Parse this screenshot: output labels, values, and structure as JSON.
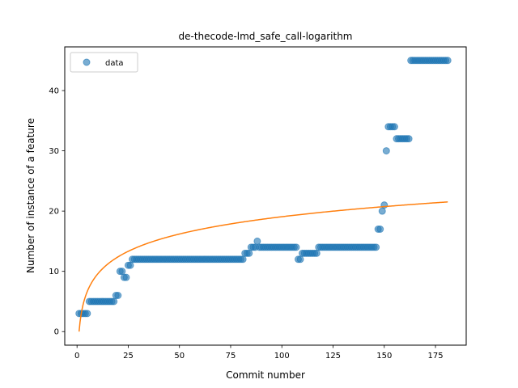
{
  "chart_data": {
    "type": "scatter",
    "title": "de-thecode-lmd_safe_call-logarithm",
    "xlabel": "Commit number",
    "ylabel": "Number of instance of a feature",
    "xlim": [
      -6,
      190
    ],
    "ylim": [
      -2.25,
      47.25
    ],
    "xticks": [
      0,
      25,
      50,
      75,
      100,
      125,
      150,
      175
    ],
    "yticks": [
      0,
      10,
      20,
      30,
      40
    ],
    "legend": {
      "position": "top-left",
      "entries": [
        "data"
      ]
    },
    "colors": {
      "data": "#1f77b4",
      "fit": "#ff7f0e"
    },
    "series": [
      {
        "name": "data",
        "kind": "scatter",
        "segments": [
          {
            "x_start": 1,
            "x_end": 5,
            "y": 3
          },
          {
            "x_start": 6,
            "x_end": 18,
            "y": 5
          },
          {
            "x_start": 19,
            "x_end": 20,
            "y": 6
          },
          {
            "x_start": 21,
            "x_end": 22,
            "y": 10
          },
          {
            "x_start": 23,
            "x_end": 24,
            "y": 9
          },
          {
            "x_start": 25,
            "x_end": 26,
            "y": 11
          },
          {
            "x_start": 27,
            "x_end": 81,
            "y": 12
          },
          {
            "x_start": 82,
            "x_end": 84,
            "y": 13
          },
          {
            "x_start": 85,
            "x_end": 87,
            "y": 14
          },
          {
            "x_start": 88,
            "x_end": 88,
            "y": 15
          },
          {
            "x_start": 89,
            "x_end": 107,
            "y": 14
          },
          {
            "x_start": 108,
            "x_end": 109,
            "y": 12
          },
          {
            "x_start": 110,
            "x_end": 117,
            "y": 13
          },
          {
            "x_start": 118,
            "x_end": 146,
            "y": 14
          },
          {
            "x_start": 147,
            "x_end": 148,
            "y": 17
          },
          {
            "x_start": 149,
            "x_end": 149,
            "y": 20
          },
          {
            "x_start": 150,
            "x_end": 150,
            "y": 21
          },
          {
            "x_start": 151,
            "x_end": 151,
            "y": 30
          },
          {
            "x_start": 152,
            "x_end": 155,
            "y": 34
          },
          {
            "x_start": 156,
            "x_end": 162,
            "y": 32
          },
          {
            "x_start": 163,
            "x_end": 181,
            "y": 45
          }
        ]
      },
      {
        "kind": "line",
        "model": "logarithmic",
        "x": [
          1,
          2,
          4,
          8,
          16,
          32,
          64,
          128,
          181
        ],
        "y": [
          0,
          2.87,
          5.74,
          8.61,
          11.48,
          14.35,
          17.22,
          20.09,
          21.52
        ]
      }
    ]
  }
}
